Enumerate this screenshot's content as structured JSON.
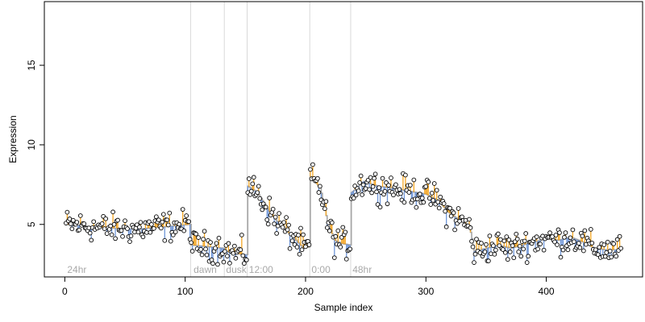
{
  "chart_data": {
    "type": "scatter",
    "xlabel": "Sample index",
    "ylabel": "Expression",
    "xlim": [
      -17,
      480
    ],
    "ylim": [
      1.7,
      19.0
    ],
    "x_ticks": [
      0,
      100,
      200,
      300,
      400
    ],
    "y_ticks": [
      5,
      10,
      15
    ],
    "grid": false,
    "segment_boundaries": [
      104,
      132,
      151,
      203,
      237
    ],
    "segment_labels": [
      {
        "label": "24hr",
        "x": 2
      },
      {
        "label": "dawn",
        "x": 107
      },
      {
        "label": "dusk",
        "x": 134
      },
      {
        "label": "12:00",
        "x": 153
      },
      {
        "label": "0:00",
        "x": 205
      },
      {
        "label": "48hr",
        "x": 239
      }
    ],
    "segments": [
      {
        "label": "24hr",
        "start": 1,
        "end": 104,
        "mean": 4.8
      },
      {
        "label": "dawn",
        "start": 105,
        "end": 132,
        "mean": 3.7
      },
      {
        "label": "dusk",
        "start": 133,
        "end": 151,
        "mean": 3.2
      },
      {
        "label": "12:00",
        "start": 152,
        "end": 203,
        "mean": 5.0
      },
      {
        "label": "0:00",
        "start": 204,
        "end": 237,
        "mean": 5.3
      },
      {
        "label": "48hr",
        "start": 238,
        "end": 462,
        "mean": 5.2
      }
    ],
    "trend_points": [
      [
        1,
        5.0
      ],
      [
        30,
        4.8
      ],
      [
        60,
        4.7
      ],
      [
        90,
        4.9
      ],
      [
        104,
        5.0
      ],
      [
        105,
        3.7
      ],
      [
        132,
        3.5
      ],
      [
        133,
        3.3
      ],
      [
        148,
        3.1
      ],
      [
        151,
        3.1
      ],
      [
        152,
        7.4
      ],
      [
        160,
        7.0
      ],
      [
        168,
        6.0
      ],
      [
        176,
        5.2
      ],
      [
        184,
        4.6
      ],
      [
        192,
        4.0
      ],
      [
        198,
        3.5
      ],
      [
        203,
        3.6
      ],
      [
        204,
        8.0
      ],
      [
        212,
        7.3
      ],
      [
        218,
        5.2
      ],
      [
        224,
        4.0
      ],
      [
        230,
        3.8
      ],
      [
        237,
        3.7
      ],
      [
        238,
        7.0
      ],
      [
        248,
        7.7
      ],
      [
        260,
        7.4
      ],
      [
        270,
        7.3
      ],
      [
        285,
        7.1
      ],
      [
        300,
        6.9
      ],
      [
        310,
        6.5
      ],
      [
        318,
        5.8
      ],
      [
        325,
        5.4
      ],
      [
        330,
        5.2
      ],
      [
        336,
        4.9
      ],
      [
        340,
        3.3
      ],
      [
        350,
        3.5
      ],
      [
        360,
        3.7
      ],
      [
        370,
        3.5
      ],
      [
        380,
        3.7
      ],
      [
        390,
        3.9
      ],
      [
        400,
        4.1
      ],
      [
        410,
        4.0
      ],
      [
        420,
        4.2
      ],
      [
        430,
        3.9
      ],
      [
        440,
        3.5
      ],
      [
        450,
        3.4
      ],
      [
        462,
        3.4
      ]
    ],
    "noise": 0.65,
    "n_points": 462,
    "colors": {
      "point_stroke": "#000000",
      "point_fill": "#ffffff",
      "step_line": "#a6a6a6",
      "residual_above": "#f5a623",
      "residual_below": "#6f96d8",
      "boundary": "#d9d9d9",
      "region_label": "#a9a9a9"
    }
  }
}
